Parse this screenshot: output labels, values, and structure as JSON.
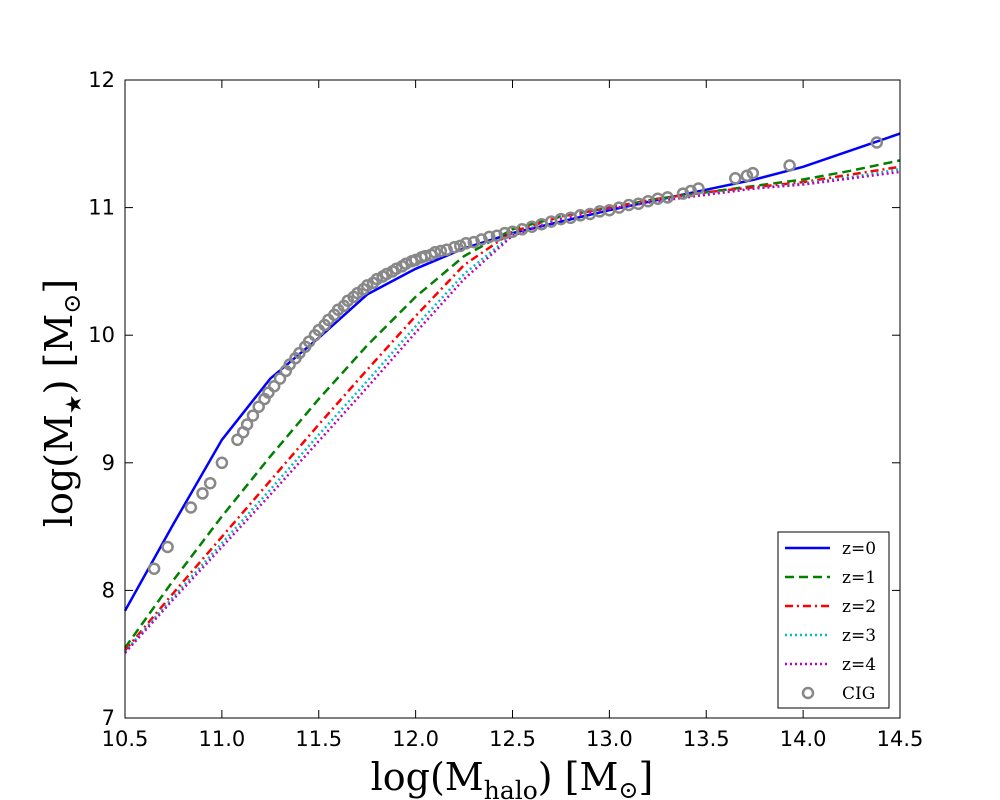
{
  "chart_data": {
    "type": "line",
    "title": "",
    "xlabel": {
      "main": "log(M",
      "sub": "halo",
      "tail": ") [M",
      "sym": "⊙",
      "close": "]"
    },
    "ylabel": {
      "main": "log(M",
      "sub": "★",
      "tail": ") [M",
      "sym": "⊙",
      "close": "]"
    },
    "xlim": [
      10.5,
      14.5
    ],
    "ylim": [
      7,
      12
    ],
    "xticks": [
      "10.5",
      "11.0",
      "11.5",
      "12.0",
      "12.5",
      "13.0",
      "13.5",
      "14.0",
      "14.5"
    ],
    "yticks": [
      "7",
      "8",
      "9",
      "10",
      "11",
      "12"
    ],
    "grid": false,
    "legend_position": "bottom-right",
    "series": [
      {
        "name": "z=0",
        "color": "#0000ff",
        "style": "solid",
        "x": [
          10.5,
          10.75,
          11.0,
          11.25,
          11.5,
          11.75,
          12.0,
          12.25,
          12.5,
          12.75,
          13.0,
          13.25,
          13.5,
          13.75,
          14.0,
          14.25,
          14.5
        ],
        "y": [
          7.84,
          8.52,
          9.18,
          9.66,
          9.98,
          10.32,
          10.52,
          10.68,
          10.8,
          10.89,
          10.98,
          11.06,
          11.14,
          11.22,
          11.32,
          11.45,
          11.58
        ]
      },
      {
        "name": "z=1",
        "color": "#008000",
        "style": "dashed",
        "x": [
          10.5,
          10.75,
          11.0,
          11.25,
          11.5,
          11.75,
          12.0,
          12.25,
          12.5,
          12.75,
          13.0,
          13.25,
          13.5,
          13.75,
          14.0,
          14.25,
          14.5
        ],
        "y": [
          7.55,
          8.08,
          8.58,
          9.05,
          9.5,
          9.92,
          10.3,
          10.62,
          10.83,
          10.93,
          11.0,
          11.07,
          11.12,
          11.17,
          11.22,
          11.29,
          11.37
        ]
      },
      {
        "name": "z=2",
        "color": "#ff0000",
        "style": "dashdot",
        "x": [
          10.5,
          10.75,
          11.0,
          11.25,
          11.5,
          11.75,
          12.0,
          12.25,
          12.5,
          12.75,
          13.0,
          13.25,
          13.5,
          13.75,
          14.0,
          14.25,
          14.5
        ],
        "y": [
          7.53,
          7.98,
          8.42,
          8.86,
          9.3,
          9.73,
          10.15,
          10.55,
          10.81,
          10.93,
          11.0,
          11.07,
          11.12,
          11.16,
          11.2,
          11.26,
          11.32
        ]
      },
      {
        "name": "z=3",
        "color": "#00bfbf",
        "style": "dotted",
        "x": [
          10.5,
          10.75,
          11.0,
          11.25,
          11.5,
          11.75,
          12.0,
          12.25,
          12.5,
          12.75,
          13.0,
          13.25,
          13.5,
          13.75,
          14.0,
          14.25,
          14.5
        ],
        "y": [
          7.52,
          7.95,
          8.37,
          8.79,
          9.22,
          9.64,
          10.07,
          10.48,
          10.79,
          10.92,
          10.99,
          11.06,
          11.11,
          11.15,
          11.19,
          11.24,
          11.3
        ]
      },
      {
        "name": "z=4",
        "color": "#bf00bf",
        "style": "dotted",
        "x": [
          10.5,
          10.75,
          11.0,
          11.25,
          11.5,
          11.75,
          12.0,
          12.25,
          12.5,
          12.75,
          13.0,
          13.25,
          13.5,
          13.75,
          14.0,
          14.25,
          14.5
        ],
        "y": [
          7.51,
          7.93,
          8.34,
          8.75,
          9.17,
          9.59,
          10.02,
          10.44,
          10.78,
          10.91,
          10.99,
          11.05,
          11.1,
          11.15,
          11.18,
          11.23,
          11.28
        ]
      }
    ],
    "scatter": {
      "name": "CIG",
      "color": "#888888",
      "x": [
        10.65,
        10.72,
        10.84,
        10.9,
        10.94,
        11.0,
        11.08,
        11.11,
        11.13,
        11.16,
        11.19,
        11.22,
        11.24,
        11.27,
        11.3,
        11.33,
        11.35,
        11.38,
        11.4,
        11.43,
        11.45,
        11.48,
        11.5,
        11.53,
        11.55,
        11.58,
        11.6,
        11.63,
        11.65,
        11.68,
        11.7,
        11.73,
        11.75,
        11.78,
        11.8,
        11.83,
        11.85,
        11.88,
        11.9,
        11.93,
        11.95,
        11.98,
        12.0,
        12.03,
        12.05,
        12.08,
        12.1,
        12.13,
        12.16,
        12.2,
        12.23,
        12.26,
        12.3,
        12.34,
        12.38,
        12.42,
        12.46,
        12.5,
        12.55,
        12.6,
        12.65,
        12.7,
        12.75,
        12.8,
        12.85,
        12.9,
        12.95,
        13.0,
        13.05,
        13.1,
        13.15,
        13.2,
        13.25,
        13.3,
        13.38,
        13.42,
        13.46,
        13.65,
        13.71,
        13.74,
        13.93,
        14.38
      ],
      "y": [
        8.17,
        8.34,
        8.65,
        8.76,
        8.84,
        9.0,
        9.18,
        9.24,
        9.3,
        9.37,
        9.44,
        9.5,
        9.55,
        9.6,
        9.66,
        9.72,
        9.77,
        9.82,
        9.86,
        9.91,
        9.95,
        10.0,
        10.04,
        10.08,
        10.12,
        10.16,
        10.2,
        10.23,
        10.27,
        10.3,
        10.33,
        10.36,
        10.39,
        10.41,
        10.44,
        10.46,
        10.48,
        10.5,
        10.52,
        10.54,
        10.56,
        10.58,
        10.59,
        10.61,
        10.62,
        10.63,
        10.65,
        10.66,
        10.67,
        10.69,
        10.7,
        10.72,
        10.73,
        10.75,
        10.77,
        10.78,
        10.8,
        10.81,
        10.83,
        10.85,
        10.87,
        10.89,
        10.91,
        10.92,
        10.94,
        10.95,
        10.97,
        10.98,
        11.0,
        11.02,
        11.03,
        11.05,
        11.07,
        11.08,
        11.11,
        11.13,
        11.15,
        11.23,
        11.25,
        11.27,
        11.33,
        11.51
      ]
    }
  }
}
